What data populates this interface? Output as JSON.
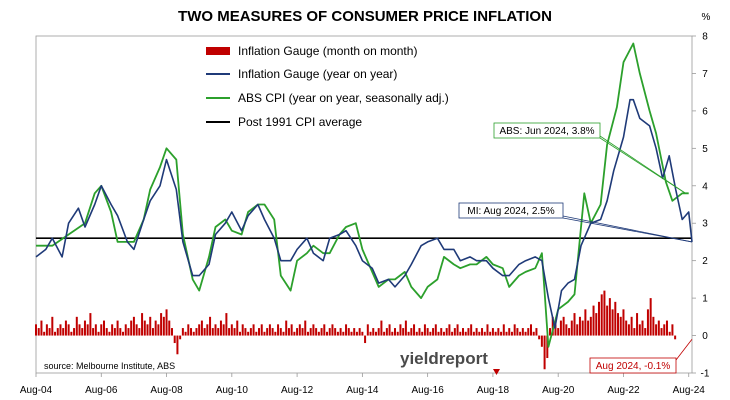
{
  "chart_data": {
    "type": "line",
    "title": "TWO MEASURES OF CONSUMER PRICE INFLATION",
    "y_unit": "%",
    "ylim": [
      -1,
      8
    ],
    "y_ticks": [
      "-1",
      "0",
      "1",
      "2",
      "3",
      "4",
      "5",
      "6",
      "7",
      "8"
    ],
    "x_ticks": [
      "Aug-04",
      "Aug-06",
      "Aug-08",
      "Aug-10",
      "Aug-12",
      "Aug-14",
      "Aug-16",
      "Aug-18",
      "Aug-20",
      "Aug-22",
      "Aug-24"
    ],
    "xlim": [
      2004.6,
      2024.7
    ],
    "legend": {
      "placement": "top-center",
      "entries": [
        {
          "label": "Inflation Gauge (month on month)",
          "color": "#c00000",
          "style": "bar"
        },
        {
          "label": "Inflation Gauge (year on year)",
          "color": "#1f3a78",
          "style": "line"
        },
        {
          "label": "ABS CPI (year on year, seasonally adj.)",
          "color": "#2ca02c",
          "style": "line"
        },
        {
          "label": "Post 1991 CPI average",
          "color": "#000000",
          "style": "line"
        }
      ]
    },
    "series": [
      {
        "name": "Inflation Gauge (year on year)",
        "color": "#1f3a78",
        "points": [
          [
            2004.6,
            2.1
          ],
          [
            2004.9,
            2.3
          ],
          [
            2005.1,
            2.6
          ],
          [
            2005.4,
            2.1
          ],
          [
            2005.6,
            3.0
          ],
          [
            2005.9,
            3.4
          ],
          [
            2006.1,
            2.9
          ],
          [
            2006.4,
            3.5
          ],
          [
            2006.6,
            4.0
          ],
          [
            2006.9,
            3.5
          ],
          [
            2007.1,
            3.2
          ],
          [
            2007.4,
            2.5
          ],
          [
            2007.6,
            2.3
          ],
          [
            2007.9,
            3.1
          ],
          [
            2008.1,
            3.6
          ],
          [
            2008.4,
            4.0
          ],
          [
            2008.6,
            4.7
          ],
          [
            2008.9,
            3.9
          ],
          [
            2009.1,
            2.5
          ],
          [
            2009.4,
            1.6
          ],
          [
            2009.6,
            1.6
          ],
          [
            2009.9,
            1.9
          ],
          [
            2010.1,
            2.7
          ],
          [
            2010.4,
            3.0
          ],
          [
            2010.6,
            3.3
          ],
          [
            2010.9,
            2.8
          ],
          [
            2011.1,
            3.2
          ],
          [
            2011.4,
            3.5
          ],
          [
            2011.6,
            3.1
          ],
          [
            2011.9,
            2.6
          ],
          [
            2012.1,
            2.0
          ],
          [
            2012.4,
            2.0
          ],
          [
            2012.6,
            2.3
          ],
          [
            2012.9,
            2.6
          ],
          [
            2013.1,
            2.2
          ],
          [
            2013.4,
            2.0
          ],
          [
            2013.6,
            2.6
          ],
          [
            2013.9,
            2.7
          ],
          [
            2014.1,
            2.8
          ],
          [
            2014.4,
            2.4
          ],
          [
            2014.6,
            2.0
          ],
          [
            2014.9,
            1.8
          ],
          [
            2015.1,
            1.4
          ],
          [
            2015.4,
            1.5
          ],
          [
            2015.6,
            1.3
          ],
          [
            2015.9,
            1.6
          ],
          [
            2016.1,
            1.9
          ],
          [
            2016.4,
            2.4
          ],
          [
            2016.6,
            2.5
          ],
          [
            2016.9,
            2.6
          ],
          [
            2017.1,
            2.3
          ],
          [
            2017.4,
            2.3
          ],
          [
            2017.6,
            2.0
          ],
          [
            2017.9,
            2.1
          ],
          [
            2018.1,
            2.0
          ],
          [
            2018.4,
            2.0
          ],
          [
            2018.6,
            1.8
          ],
          [
            2018.9,
            1.6
          ],
          [
            2019.1,
            1.6
          ],
          [
            2019.4,
            1.9
          ],
          [
            2019.6,
            2.0
          ],
          [
            2019.9,
            2.1
          ],
          [
            2020.1,
            2.0
          ],
          [
            2020.3,
            1.0
          ],
          [
            2020.5,
            0.2
          ],
          [
            2020.7,
            1.2
          ],
          [
            2020.9,
            1.4
          ],
          [
            2021.1,
            1.5
          ],
          [
            2021.3,
            2.4
          ],
          [
            2021.6,
            3.0
          ],
          [
            2021.9,
            3.1
          ],
          [
            2022.1,
            3.6
          ],
          [
            2022.3,
            4.4
          ],
          [
            2022.6,
            5.3
          ],
          [
            2022.8,
            6.3
          ],
          [
            2022.9,
            6.3
          ],
          [
            2023.1,
            5.8
          ],
          [
            2023.4,
            5.6
          ],
          [
            2023.6,
            5.0
          ],
          [
            2023.8,
            4.2
          ],
          [
            2024.0,
            4.8
          ],
          [
            2024.2,
            3.9
          ],
          [
            2024.4,
            3.1
          ],
          [
            2024.6,
            3.3
          ],
          [
            2024.7,
            2.5
          ]
        ]
      },
      {
        "name": "ABS CPI (year on year, seasonally adj.)",
        "color": "#2ca02c",
        "points": [
          [
            2004.6,
            2.4
          ],
          [
            2005.1,
            2.4
          ],
          [
            2005.6,
            2.7
          ],
          [
            2006.1,
            3.0
          ],
          [
            2006.4,
            3.8
          ],
          [
            2006.6,
            4.0
          ],
          [
            2006.9,
            3.3
          ],
          [
            2007.1,
            2.5
          ],
          [
            2007.4,
            2.5
          ],
          [
            2007.6,
            2.5
          ],
          [
            2007.9,
            3.1
          ],
          [
            2008.1,
            3.9
          ],
          [
            2008.4,
            4.5
          ],
          [
            2008.6,
            5.0
          ],
          [
            2008.9,
            4.7
          ],
          [
            2009.1,
            2.7
          ],
          [
            2009.4,
            1.5
          ],
          [
            2009.6,
            1.2
          ],
          [
            2009.9,
            2.1
          ],
          [
            2010.1,
            2.9
          ],
          [
            2010.4,
            3.1
          ],
          [
            2010.6,
            2.8
          ],
          [
            2010.9,
            2.7
          ],
          [
            2011.1,
            3.3
          ],
          [
            2011.4,
            3.5
          ],
          [
            2011.6,
            3.5
          ],
          [
            2011.9,
            3.1
          ],
          [
            2012.1,
            1.6
          ],
          [
            2012.4,
            1.2
          ],
          [
            2012.6,
            2.0
          ],
          [
            2012.9,
            2.2
          ],
          [
            2013.1,
            2.4
          ],
          [
            2013.4,
            2.2
          ],
          [
            2013.6,
            2.2
          ],
          [
            2013.9,
            2.7
          ],
          [
            2014.1,
            2.9
          ],
          [
            2014.4,
            3.0
          ],
          [
            2014.6,
            2.3
          ],
          [
            2014.9,
            1.7
          ],
          [
            2015.1,
            1.3
          ],
          [
            2015.4,
            1.5
          ],
          [
            2015.6,
            1.5
          ],
          [
            2015.9,
            1.7
          ],
          [
            2016.1,
            1.3
          ],
          [
            2016.4,
            1.0
          ],
          [
            2016.6,
            1.3
          ],
          [
            2016.9,
            1.5
          ],
          [
            2017.1,
            2.1
          ],
          [
            2017.4,
            1.9
          ],
          [
            2017.6,
            1.8
          ],
          [
            2017.9,
            1.9
          ],
          [
            2018.1,
            1.9
          ],
          [
            2018.4,
            2.1
          ],
          [
            2018.6,
            1.9
          ],
          [
            2018.9,
            1.8
          ],
          [
            2019.1,
            1.3
          ],
          [
            2019.4,
            1.6
          ],
          [
            2019.6,
            1.7
          ],
          [
            2019.9,
            1.8
          ],
          [
            2020.1,
            2.2
          ],
          [
            2020.3,
            -0.3
          ],
          [
            2020.6,
            0.7
          ],
          [
            2020.9,
            0.9
          ],
          [
            2021.1,
            1.1
          ],
          [
            2021.4,
            3.8
          ],
          [
            2021.6,
            3.0
          ],
          [
            2021.9,
            3.5
          ],
          [
            2022.1,
            5.1
          ],
          [
            2022.4,
            6.1
          ],
          [
            2022.6,
            7.3
          ],
          [
            2022.9,
            7.8
          ],
          [
            2023.1,
            7.0
          ],
          [
            2023.4,
            6.0
          ],
          [
            2023.6,
            5.4
          ],
          [
            2023.9,
            4.1
          ],
          [
            2024.1,
            3.6
          ],
          [
            2024.4,
            3.8
          ],
          [
            2024.6,
            3.8
          ]
        ]
      },
      {
        "name": "Post 1991 CPI average",
        "color": "#000000",
        "points": [
          [
            2004.6,
            2.6
          ],
          [
            2024.7,
            2.6
          ]
        ]
      }
    ],
    "bars": {
      "name": "Inflation Gauge (month on month)",
      "color": "#c00000",
      "start": 2004.6,
      "step": 0.0833333,
      "values": [
        0.3,
        0.2,
        0.4,
        0.1,
        0.3,
        0.2,
        0.5,
        0.1,
        0.2,
        0.3,
        0.2,
        0.4,
        0.3,
        0.1,
        0.2,
        0.5,
        0.3,
        0.2,
        0.4,
        0.3,
        0.6,
        0.2,
        0.3,
        0.1,
        0.3,
        0.4,
        0.2,
        0.1,
        0.3,
        0.2,
        0.4,
        0.2,
        0.1,
        0.3,
        0.2,
        0.4,
        0.5,
        0.3,
        0.2,
        0.6,
        0.4,
        0.3,
        0.5,
        0.2,
        0.4,
        0.3,
        0.6,
        0.5,
        0.7,
        0.4,
        0.2,
        -0.2,
        -0.5,
        -0.1,
        0.2,
        0.1,
        0.3,
        0.2,
        0.1,
        0.2,
        0.3,
        0.4,
        0.2,
        0.3,
        0.5,
        0.2,
        0.3,
        0.2,
        0.4,
        0.3,
        0.6,
        0.2,
        0.3,
        0.2,
        0.4,
        0.1,
        0.3,
        0.2,
        0.1,
        0.2,
        0.3,
        0.1,
        0.2,
        0.3,
        0.1,
        0.2,
        0.3,
        0.2,
        0.1,
        0.3,
        0.2,
        0.1,
        0.4,
        0.2,
        0.3,
        0.1,
        0.2,
        0.3,
        0.2,
        0.4,
        0.1,
        0.2,
        0.3,
        0.2,
        0.1,
        0.2,
        0.3,
        0.1,
        0.2,
        0.3,
        0.2,
        0.1,
        0.2,
        0.1,
        0.3,
        0.2,
        0.1,
        0.2,
        0.1,
        0.2,
        0.1,
        -0.2,
        0.3,
        0.1,
        0.2,
        0.1,
        0.2,
        0.4,
        0.1,
        0.2,
        0.3,
        0.1,
        0.2,
        0.1,
        0.3,
        0.2,
        0.4,
        0.1,
        0.2,
        0.3,
        0.1,
        0.2,
        0.1,
        0.3,
        0.2,
        0.1,
        0.2,
        0.3,
        0.1,
        0.2,
        0.1,
        0.2,
        0.3,
        0.1,
        0.2,
        0.3,
        0.1,
        0.2,
        0.1,
        0.2,
        0.3,
        0.1,
        0.2,
        0.1,
        0.2,
        0.1,
        0.3,
        0.1,
        0.2,
        0.1,
        0.2,
        0.1,
        0.3,
        0.1,
        0.2,
        0.1,
        0.3,
        0.2,
        0.1,
        0.2,
        0.1,
        0.2,
        0.3,
        0.1,
        0.2,
        -0.1,
        -0.3,
        -0.9,
        -0.6,
        0.2,
        0.5,
        0.3,
        0.2,
        0.4,
        0.5,
        0.3,
        0.2,
        0.4,
        0.6,
        0.3,
        0.5,
        0.4,
        0.7,
        0.4,
        0.5,
        0.8,
        0.6,
        0.9,
        1.1,
        1.2,
        0.8,
        1.0,
        0.7,
        0.9,
        0.6,
        0.5,
        0.7,
        0.4,
        0.3,
        0.5,
        0.2,
        0.6,
        0.3,
        0.4,
        0.2,
        0.7,
        1.0,
        0.5,
        0.3,
        0.4,
        0.2,
        0.3,
        0.4,
        0.1,
        0.3,
        -0.1
      ]
    },
    "annotations": [
      {
        "label": "ABS: Jun 2024, 3.8%",
        "color": "#2ca02c",
        "x": 2024.5,
        "y": 3.8
      },
      {
        "label": "MI: Aug 2024, 2.5%",
        "color": "#1f3a78",
        "x": 2024.7,
        "y": 2.5
      },
      {
        "label": "Aug 2024, -0.1%",
        "color": "#c00000",
        "x": 2024.7,
        "y": -0.1
      }
    ],
    "source": "source: Melbourne Institute, ABS",
    "logo": "yieldreport",
    "grid": false
  }
}
